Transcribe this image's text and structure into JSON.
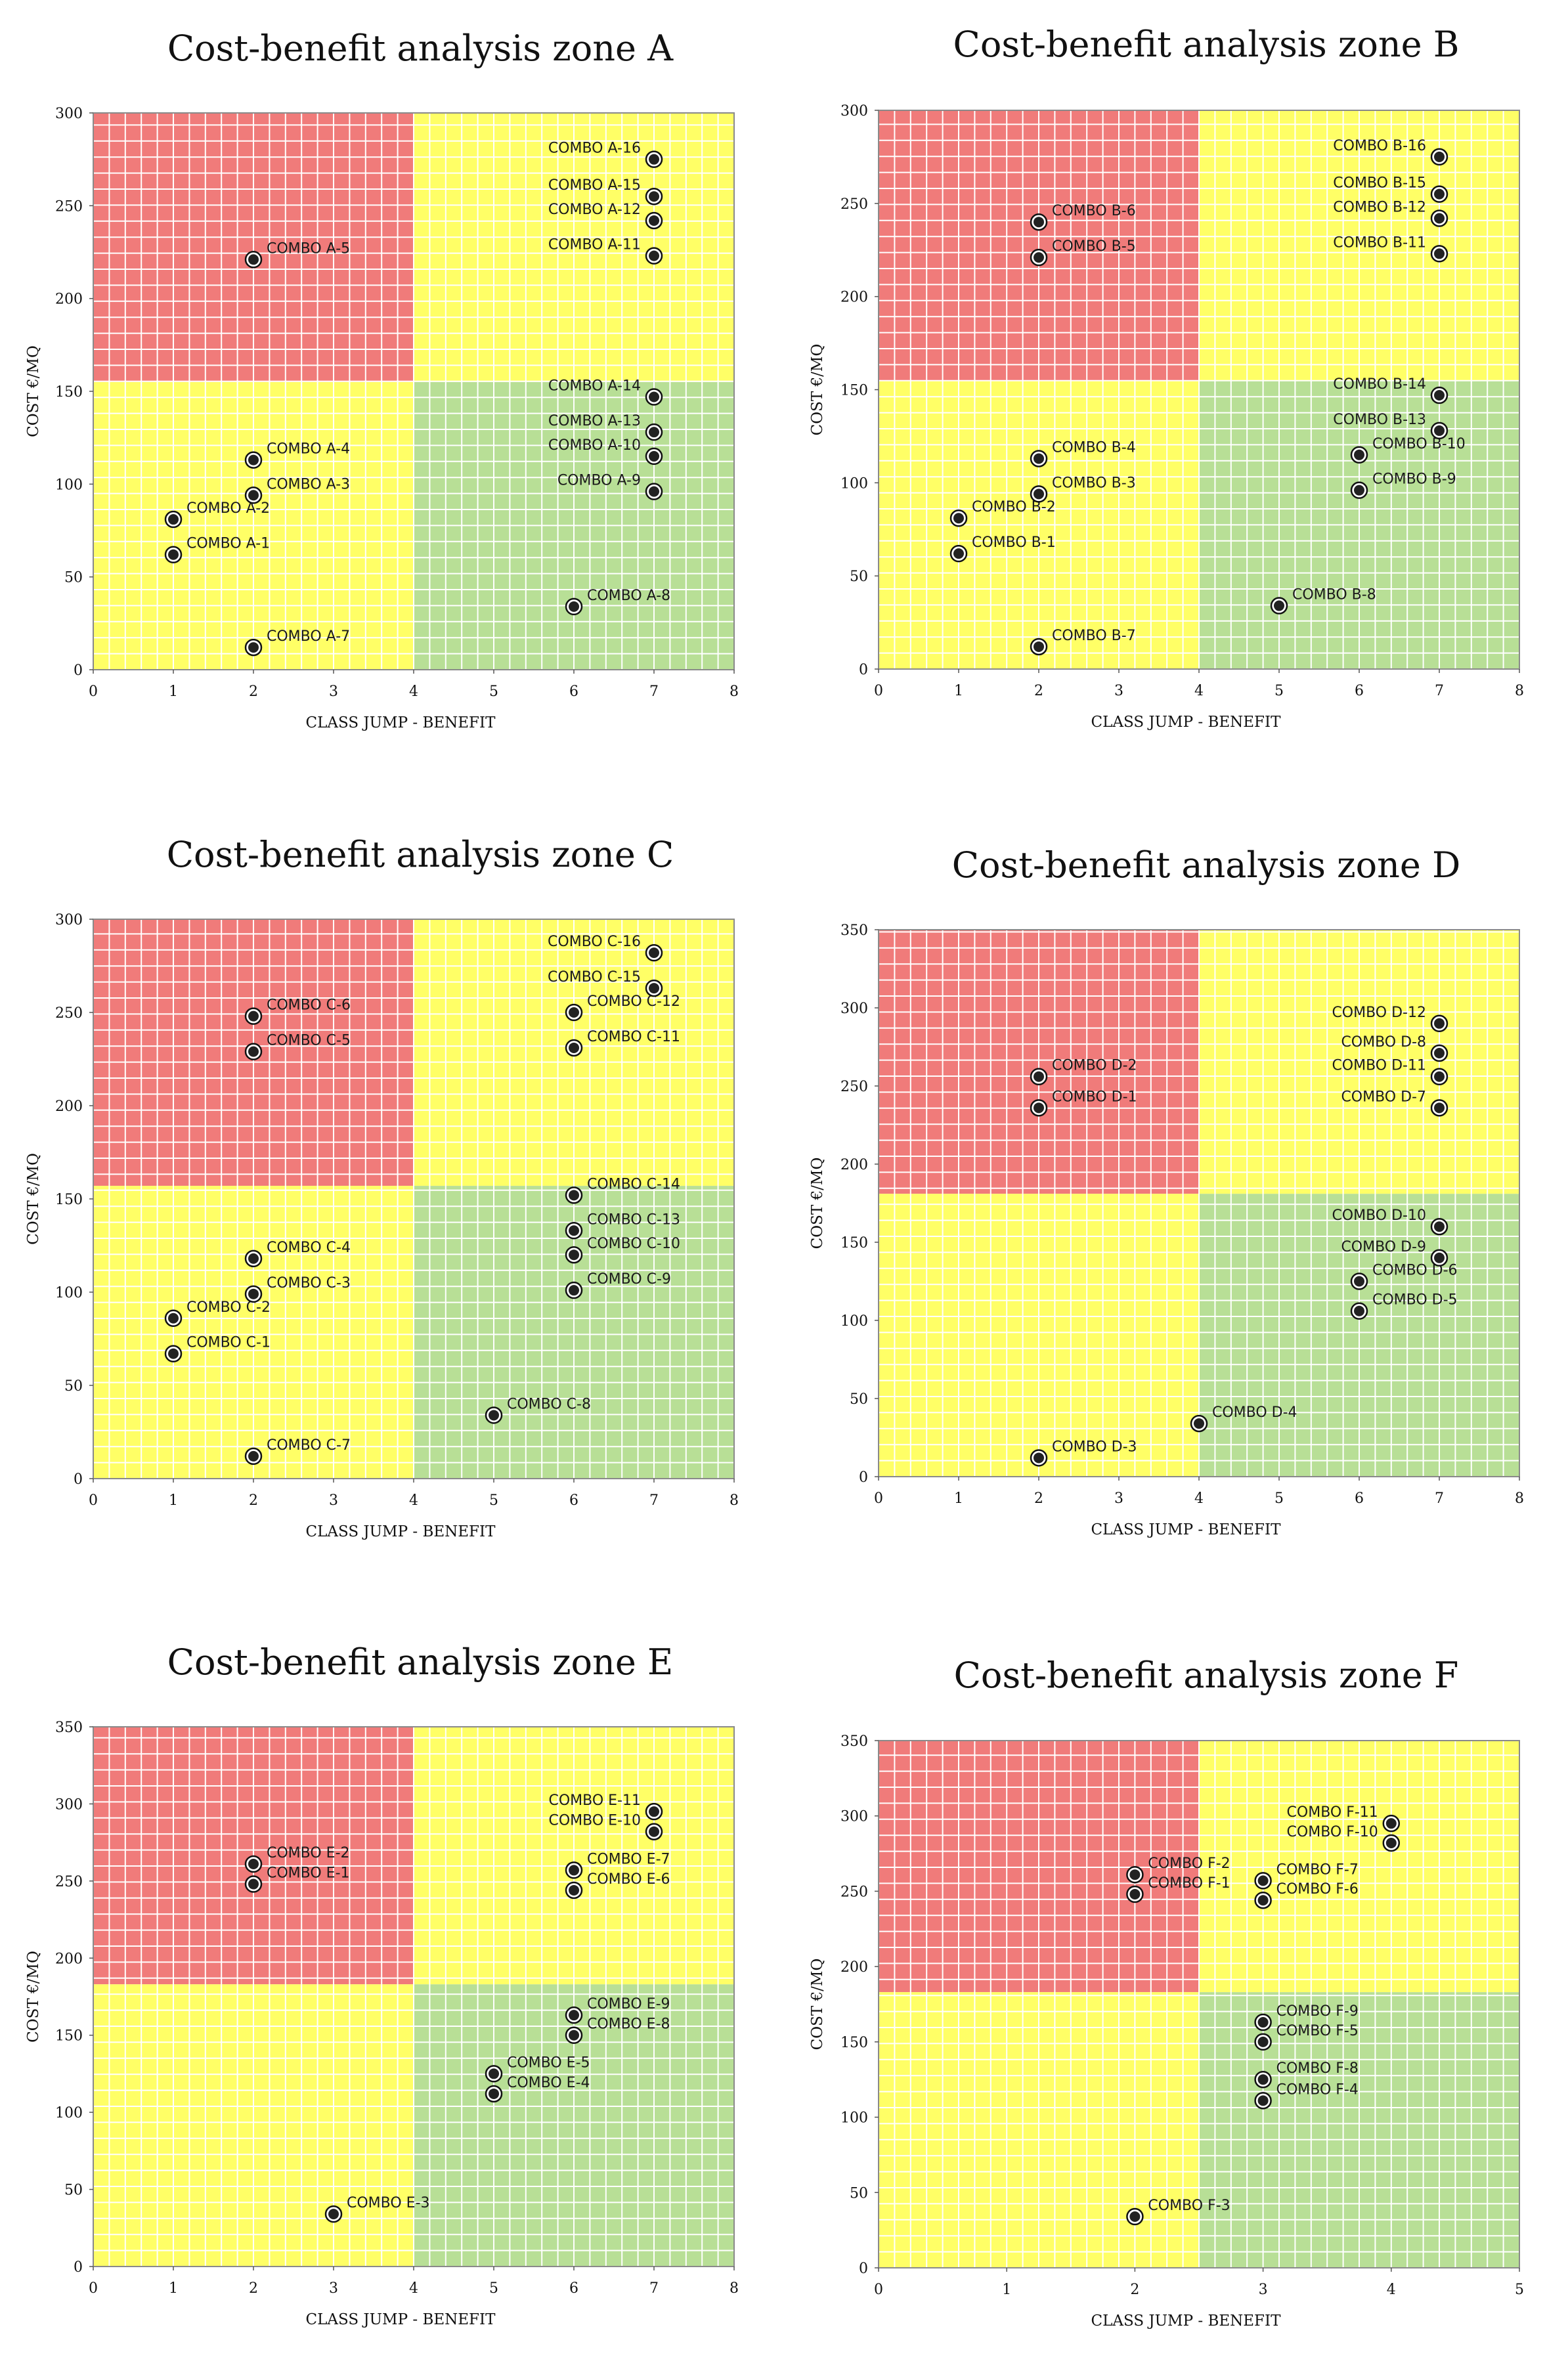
{
  "chart_data": [
    {
      "type": "scatter",
      "title": "Cost-benefit analysis zone A",
      "xlabel": "CLASS JUMP - BENEFIT",
      "ylabel": "COST €/MQ",
      "xlim": [
        0,
        8
      ],
      "ylim": [
        0,
        300
      ],
      "xstep": 1,
      "ystep": 50,
      "zones": {
        "x_split": 4,
        "y_split": 155
      },
      "points": [
        {
          "label": "COMBO A-1",
          "x": 1,
          "y": 62
        },
        {
          "label": "COMBO A-2",
          "x": 1,
          "y": 81
        },
        {
          "label": "COMBO A-3",
          "x": 2,
          "y": 94
        },
        {
          "label": "COMBO A-4",
          "x": 2,
          "y": 113
        },
        {
          "label": "COMBO A-5",
          "x": 2,
          "y": 221
        },
        {
          "label": "COMBO A-7",
          "x": 2,
          "y": 12
        },
        {
          "label": "COMBO A-8",
          "x": 6,
          "y": 34
        },
        {
          "label": "COMBO A-9",
          "x": 7,
          "y": 96
        },
        {
          "label": "COMBO A-10",
          "x": 7,
          "y": 115
        },
        {
          "label": "COMBO A-13",
          "x": 7,
          "y": 128
        },
        {
          "label": "COMBO A-14",
          "x": 7,
          "y": 147
        },
        {
          "label": "COMBO A-11",
          "x": 7,
          "y": 223
        },
        {
          "label": "COMBO A-12",
          "x": 7,
          "y": 242
        },
        {
          "label": "COMBO A-15",
          "x": 7,
          "y": 255
        },
        {
          "label": "COMBO A-16",
          "x": 7,
          "y": 275
        }
      ]
    },
    {
      "type": "scatter",
      "title": "Cost-benefit analysis zone B",
      "xlabel": "CLASS JUMP - BENEFIT",
      "ylabel": "COST €/MQ",
      "xlim": [
        0,
        8
      ],
      "ylim": [
        0,
        300
      ],
      "xstep": 1,
      "ystep": 50,
      "zones": {
        "x_split": 4,
        "y_split": 155
      },
      "points": [
        {
          "label": "COMBO B-1",
          "x": 1,
          "y": 62
        },
        {
          "label": "COMBO B-2",
          "x": 1,
          "y": 81
        },
        {
          "label": "COMBO B-3",
          "x": 2,
          "y": 94
        },
        {
          "label": "COMBO B-4",
          "x": 2,
          "y": 113
        },
        {
          "label": "COMBO B-5",
          "x": 2,
          "y": 221
        },
        {
          "label": "COMBO B-6",
          "x": 2,
          "y": 240
        },
        {
          "label": "COMBO B-7",
          "x": 2,
          "y": 12
        },
        {
          "label": "COMBO B-8",
          "x": 5,
          "y": 34
        },
        {
          "label": "COMBO B-9",
          "x": 6,
          "y": 96
        },
        {
          "label": "COMBO B-10",
          "x": 6,
          "y": 115
        },
        {
          "label": "COMBO B-13",
          "x": 7,
          "y": 128
        },
        {
          "label": "COMBO B-14",
          "x": 7,
          "y": 147
        },
        {
          "label": "COMBO B-11",
          "x": 7,
          "y": 223
        },
        {
          "label": "COMBO B-12",
          "x": 7,
          "y": 242
        },
        {
          "label": "COMBO B-15",
          "x": 7,
          "y": 255
        },
        {
          "label": "COMBO B-16",
          "x": 7,
          "y": 275
        }
      ]
    },
    {
      "type": "scatter",
      "title": "Cost-benefit analysis zone C",
      "xlabel": "CLASS JUMP - BENEFIT",
      "ylabel": "COST €/MQ",
      "xlim": [
        0,
        8
      ],
      "ylim": [
        0,
        300
      ],
      "xstep": 1,
      "ystep": 50,
      "zones": {
        "x_split": 4,
        "y_split": 157
      },
      "points": [
        {
          "label": "COMBO C-1",
          "x": 1,
          "y": 67
        },
        {
          "label": "COMBO C-2",
          "x": 1,
          "y": 86
        },
        {
          "label": "COMBO C-3",
          "x": 2,
          "y": 99
        },
        {
          "label": "COMBO C-4",
          "x": 2,
          "y": 118
        },
        {
          "label": "COMBO C-5",
          "x": 2,
          "y": 229
        },
        {
          "label": "COMBO C-6",
          "x": 2,
          "y": 248
        },
        {
          "label": "COMBO C-7",
          "x": 2,
          "y": 12
        },
        {
          "label": "COMBO C-8",
          "x": 5,
          "y": 34
        },
        {
          "label": "COMBO C-9",
          "x": 6,
          "y": 101
        },
        {
          "label": "COMBO C-10",
          "x": 6,
          "y": 120
        },
        {
          "label": "COMBO C-13",
          "x": 6,
          "y": 133
        },
        {
          "label": "COMBO C-14",
          "x": 6,
          "y": 152
        },
        {
          "label": "COMBO C-11",
          "x": 6,
          "y": 231
        },
        {
          "label": "COMBO C-12",
          "x": 6,
          "y": 250
        },
        {
          "label": "COMBO C-15",
          "x": 7,
          "y": 263
        },
        {
          "label": "COMBO C-16",
          "x": 7,
          "y": 282
        }
      ]
    },
    {
      "type": "scatter",
      "title": "Cost-benefit analysis zone D",
      "xlabel": "CLASS JUMP - BENEFIT",
      "ylabel": "COST €/MQ",
      "xlim": [
        0,
        8
      ],
      "ylim": [
        0,
        350
      ],
      "xstep": 1,
      "ystep": 50,
      "zones": {
        "x_split": 4,
        "y_split": 181
      },
      "points": [
        {
          "label": "COMBO D-1",
          "x": 2,
          "y": 236
        },
        {
          "label": "COMBO D-2",
          "x": 2,
          "y": 256
        },
        {
          "label": "COMBO D-3",
          "x": 2,
          "y": 12
        },
        {
          "label": "COMBO D-4",
          "x": 4,
          "y": 34
        },
        {
          "label": "COMBO D-5",
          "x": 6,
          "y": 106
        },
        {
          "label": "COMBO D-6",
          "x": 6,
          "y": 125
        },
        {
          "label": "COMBO D-9",
          "x": 7,
          "y": 140
        },
        {
          "label": "COMBO D-10",
          "x": 7,
          "y": 160
        },
        {
          "label": "COMBO D-7",
          "x": 7,
          "y": 236
        },
        {
          "label": "COMBO D-11",
          "x": 7,
          "y": 256
        },
        {
          "label": "COMBO D-8",
          "x": 7,
          "y": 271
        },
        {
          "label": "COMBO D-12",
          "x": 7,
          "y": 290
        }
      ]
    },
    {
      "type": "scatter",
      "title": "Cost-benefit analysis zone E",
      "xlabel": "CLASS JUMP - BENEFIT",
      "ylabel": "COST €/MQ",
      "xlim": [
        0,
        8
      ],
      "ylim": [
        0,
        350
      ],
      "xstep": 1,
      "ystep": 50,
      "zones": {
        "x_split": 4,
        "y_split": 183
      },
      "points": [
        {
          "label": "COMBO E-1",
          "x": 2,
          "y": 248
        },
        {
          "label": "COMBO E-2",
          "x": 2,
          "y": 261
        },
        {
          "label": "COMBO E-3",
          "x": 3,
          "y": 34
        },
        {
          "label": "COMBO E-4",
          "x": 5,
          "y": 112
        },
        {
          "label": "COMBO E-5",
          "x": 5,
          "y": 125
        },
        {
          "label": "COMBO E-8",
          "x": 6,
          "y": 150
        },
        {
          "label": "COMBO E-9",
          "x": 6,
          "y": 163
        },
        {
          "label": "COMBO E-6",
          "x": 6,
          "y": 244
        },
        {
          "label": "COMBO E-7",
          "x": 6,
          "y": 257
        },
        {
          "label": "COMBO E-10",
          "x": 7,
          "y": 282
        },
        {
          "label": "COMBO E-11",
          "x": 7,
          "y": 295
        }
      ]
    },
    {
      "type": "scatter",
      "title": "Cost-benefit analysis zone F",
      "xlabel": "CLASS JUMP - BENEFIT",
      "ylabel": "COST €/MQ",
      "xlim": [
        0,
        5
      ],
      "ylim": [
        0,
        350
      ],
      "xstep": 1,
      "ystep": 50,
      "zones": {
        "x_split": 2.5,
        "y_split": 183
      },
      "points": [
        {
          "label": "COMBO F-1",
          "x": 2,
          "y": 248
        },
        {
          "label": "COMBO F-2",
          "x": 2,
          "y": 261
        },
        {
          "label": "COMBO F-3",
          "x": 2,
          "y": 34
        },
        {
          "label": "COMBO F-4",
          "x": 3,
          "y": 111
        },
        {
          "label": "COMBO F-8",
          "x": 3,
          "y": 125
        },
        {
          "label": "COMBO F-5",
          "x": 3,
          "y": 150
        },
        {
          "label": "COMBO F-9",
          "x": 3,
          "y": 163
        },
        {
          "label": "COMBO F-6",
          "x": 3,
          "y": 244
        },
        {
          "label": "COMBO F-7",
          "x": 3,
          "y": 257
        },
        {
          "label": "COMBO F-10",
          "x": 4,
          "y": 282
        },
        {
          "label": "COMBO F-11",
          "x": 4,
          "y": 295
        }
      ]
    }
  ],
  "colors": {
    "red_zone": "#F07B7A",
    "yellow_zone": "#FFFF66",
    "green_zone": "#B8DF96",
    "grid": "#FFFFFF",
    "marker_fill": "#222222",
    "marker_ring": "#111111"
  }
}
